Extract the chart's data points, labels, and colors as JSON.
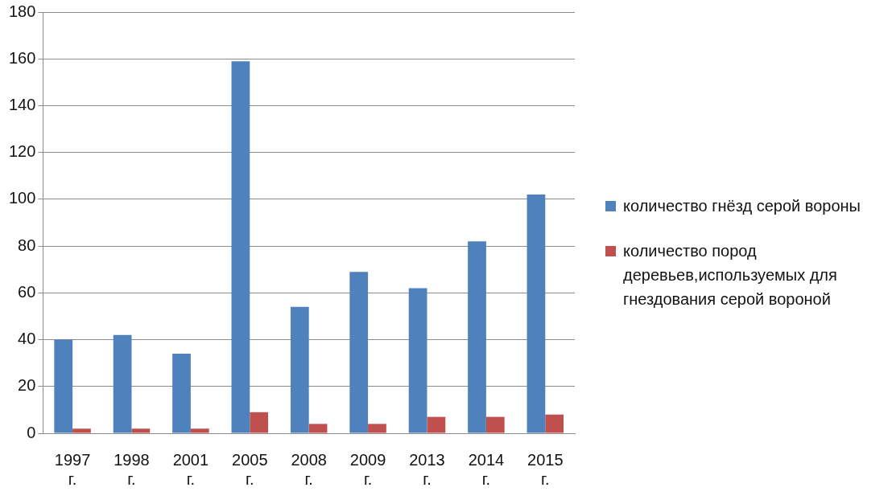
{
  "chart_data": {
    "type": "bar",
    "categories": [
      "1997 г.",
      "1998 г.",
      "2001 г.",
      "2005 г.",
      "2008 г.",
      "2009 г.",
      "2013 г.",
      "2014 г.",
      "2015 г."
    ],
    "series": [
      {
        "name": "количество гнёзд серой вороны",
        "color": "#4f81bd",
        "values": [
          40,
          42,
          34,
          159,
          54,
          69,
          62,
          82,
          102
        ]
      },
      {
        "name": "количество пород деревьев,используемых для гнездования серой вороной",
        "color": "#c0504d",
        "values": [
          2,
          2,
          2,
          9,
          4,
          4,
          7,
          7,
          8
        ]
      }
    ],
    "ylim": [
      0,
      180
    ],
    "yticks": [
      0,
      20,
      40,
      60,
      80,
      100,
      120,
      140,
      160,
      180
    ],
    "grid": "y",
    "legend": "right"
  }
}
